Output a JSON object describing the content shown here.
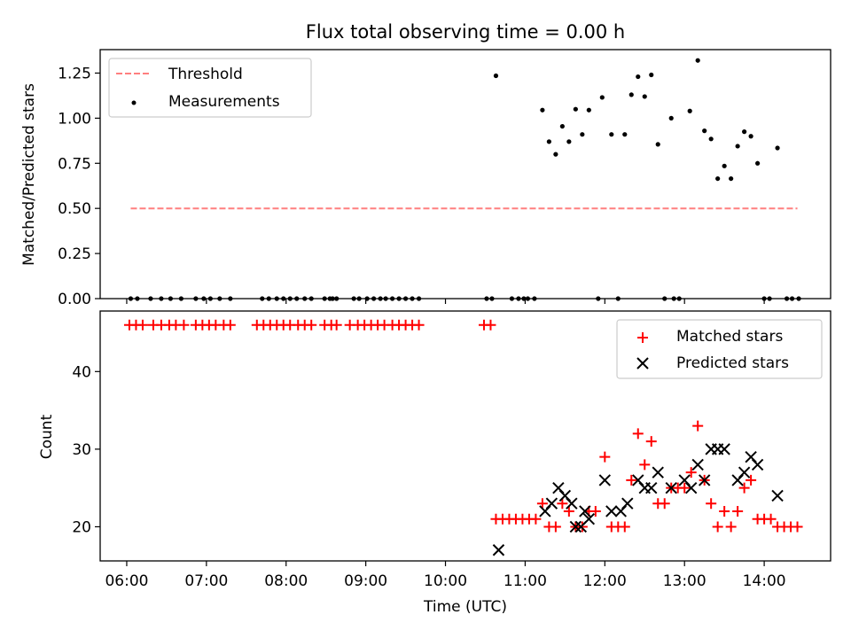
{
  "chart_data": [
    {
      "type": "scatter",
      "title": "Flux total observing time = 0.00 h",
      "xlabel": "",
      "ylabel": "Matched/Predicted stars",
      "xlim": [
        "05:40",
        "14:50"
      ],
      "ylim": [
        0,
        1.38
      ],
      "yticks": [
        0.0,
        0.25,
        0.5,
        0.75,
        1.0,
        1.25
      ],
      "ytick_labels": [
        "0.00",
        "0.25",
        "0.50",
        "0.75",
        "1.00",
        "1.25"
      ],
      "xticks": [
        "06:00",
        "07:00",
        "08:00",
        "09:00",
        "10:00",
        "11:00",
        "12:00",
        "13:00",
        "14:00"
      ],
      "grid": false,
      "legend": {
        "placement": "top-left",
        "entries": [
          "Threshold",
          "Measurements"
        ]
      },
      "threshold": {
        "name": "Threshold",
        "y": 0.5,
        "x_range": [
          "06:03",
          "14:25"
        ],
        "color": "#ff7f7f",
        "style": "dashed"
      },
      "series": [
        {
          "name": "Measurements",
          "marker": "dot",
          "color": "#000000",
          "points": [
            [
              "06:03",
              0
            ],
            [
              "06:08",
              0
            ],
            [
              "06:18",
              0
            ],
            [
              "06:26",
              0
            ],
            [
              "06:33",
              0
            ],
            [
              "06:41",
              0
            ],
            [
              "06:52",
              0
            ],
            [
              "06:58",
              0
            ],
            [
              "07:03",
              0
            ],
            [
              "07:10",
              0
            ],
            [
              "07:18",
              0
            ],
            [
              "07:42",
              0
            ],
            [
              "07:47",
              0
            ],
            [
              "07:53",
              0
            ],
            [
              "07:58",
              0
            ],
            [
              "08:03",
              0
            ],
            [
              "08:08",
              0
            ],
            [
              "08:14",
              0
            ],
            [
              "08:19",
              0
            ],
            [
              "08:29",
              0
            ],
            [
              "08:33",
              0
            ],
            [
              "08:35",
              0
            ],
            [
              "08:38",
              0
            ],
            [
              "08:51",
              0
            ],
            [
              "08:55",
              0
            ],
            [
              "09:01",
              0
            ],
            [
              "09:06",
              0
            ],
            [
              "09:11",
              0
            ],
            [
              "09:15",
              0
            ],
            [
              "09:20",
              0
            ],
            [
              "09:25",
              0
            ],
            [
              "09:30",
              0
            ],
            [
              "09:35",
              0
            ],
            [
              "09:40",
              0
            ],
            [
              "10:31",
              0
            ],
            [
              "10:35",
              0
            ],
            [
              "10:50",
              0
            ],
            [
              "10:55",
              0
            ],
            [
              "10:59",
              0
            ],
            [
              "11:02",
              0
            ],
            [
              "11:07",
              0
            ],
            [
              "11:55",
              0
            ],
            [
              "12:10",
              0
            ],
            [
              "12:45",
              0
            ],
            [
              "12:52",
              0
            ],
            [
              "12:56",
              0
            ],
            [
              "14:00",
              0
            ],
            [
              "14:04",
              0
            ],
            [
              "14:17",
              0
            ],
            [
              "14:21",
              0
            ],
            [
              "14:26",
              0
            ],
            [
              "10:38",
              1.235
            ],
            [
              "11:13",
              1.045
            ],
            [
              "11:18",
              0.87
            ],
            [
              "11:23",
              0.8
            ],
            [
              "11:28",
              0.955
            ],
            [
              "11:33",
              0.87
            ],
            [
              "11:38",
              1.05
            ],
            [
              "11:43",
              0.91
            ],
            [
              "11:48",
              1.045
            ],
            [
              "11:58",
              1.115
            ],
            [
              "12:05",
              0.91
            ],
            [
              "12:15",
              0.91
            ],
            [
              "12:20",
              1.13
            ],
            [
              "12:25",
              1.23
            ],
            [
              "12:30",
              1.12
            ],
            [
              "12:35",
              1.24
            ],
            [
              "12:40",
              0.855
            ],
            [
              "12:50",
              1.0
            ],
            [
              "13:04",
              1.04
            ],
            [
              "13:10",
              1.32
            ],
            [
              "13:15",
              0.93
            ],
            [
              "13:20",
              0.885
            ],
            [
              "13:25",
              0.665
            ],
            [
              "13:30",
              0.735
            ],
            [
              "13:35",
              0.665
            ],
            [
              "13:40",
              0.845
            ],
            [
              "13:45",
              0.925
            ],
            [
              "13:50",
              0.9
            ],
            [
              "13:55",
              0.75
            ],
            [
              "14:10",
              0.835
            ]
          ]
        }
      ]
    },
    {
      "type": "scatter",
      "title": "",
      "xlabel": "Time (UTC)",
      "ylabel": "Count",
      "xlim": [
        "05:40",
        "14:50"
      ],
      "ylim": [
        15.6,
        47.8
      ],
      "yticks": [
        20,
        30,
        40
      ],
      "ytick_labels": [
        "20",
        "30",
        "40"
      ],
      "xticks": [
        "06:00",
        "07:00",
        "08:00",
        "09:00",
        "10:00",
        "11:00",
        "12:00",
        "13:00",
        "14:00"
      ],
      "xtick_labels": [
        "06:00",
        "07:00",
        "08:00",
        "09:00",
        "10:00",
        "11:00",
        "12:00",
        "13:00",
        "14:00"
      ],
      "grid": false,
      "legend": {
        "placement": "top-right",
        "entries": [
          "Matched stars",
          "Predicted stars"
        ]
      },
      "series": [
        {
          "name": "Matched stars",
          "marker": "plus",
          "color": "#ff0000",
          "points": [
            [
              "06:02",
              46
            ],
            [
              "06:07",
              46
            ],
            [
              "06:12",
              46
            ],
            [
              "06:20",
              46
            ],
            [
              "06:26",
              46
            ],
            [
              "06:32",
              46
            ],
            [
              "06:37",
              46
            ],
            [
              "06:43",
              46
            ],
            [
              "06:52",
              46
            ],
            [
              "06:57",
              46
            ],
            [
              "07:02",
              46
            ],
            [
              "07:07",
              46
            ],
            [
              "07:13",
              46
            ],
            [
              "07:18",
              46
            ],
            [
              "07:38",
              46
            ],
            [
              "07:43",
              46
            ],
            [
              "07:48",
              46
            ],
            [
              "07:53",
              46
            ],
            [
              "07:58",
              46
            ],
            [
              "08:03",
              46
            ],
            [
              "08:09",
              46
            ],
            [
              "08:14",
              46
            ],
            [
              "08:19",
              46
            ],
            [
              "08:29",
              46
            ],
            [
              "08:34",
              46
            ],
            [
              "08:38",
              46
            ],
            [
              "08:48",
              46
            ],
            [
              "08:54",
              46
            ],
            [
              "08:59",
              46
            ],
            [
              "09:04",
              46
            ],
            [
              "09:09",
              46
            ],
            [
              "09:14",
              46
            ],
            [
              "09:20",
              46
            ],
            [
              "09:25",
              46
            ],
            [
              "09:30",
              46
            ],
            [
              "09:35",
              46
            ],
            [
              "09:40",
              46
            ],
            [
              "10:29",
              46
            ],
            [
              "10:34",
              46
            ],
            [
              "10:38",
              21
            ],
            [
              "10:43",
              21
            ],
            [
              "10:48",
              21
            ],
            [
              "10:53",
              21
            ],
            [
              "10:58",
              21
            ],
            [
              "11:03",
              21
            ],
            [
              "11:08",
              21
            ],
            [
              "11:13",
              23
            ],
            [
              "11:18",
              20
            ],
            [
              "11:23",
              20
            ],
            [
              "11:28",
              23
            ],
            [
              "11:33",
              22
            ],
            [
              "11:38",
              20
            ],
            [
              "11:43",
              20
            ],
            [
              "11:48",
              22
            ],
            [
              "11:53",
              22
            ],
            [
              "12:00",
              29
            ],
            [
              "12:05",
              20
            ],
            [
              "12:10",
              20
            ],
            [
              "12:15",
              20
            ],
            [
              "12:20",
              26
            ],
            [
              "12:25",
              32
            ],
            [
              "12:30",
              28
            ],
            [
              "12:35",
              31
            ],
            [
              "12:40",
              23
            ],
            [
              "12:45",
              23
            ],
            [
              "12:50",
              25
            ],
            [
              "12:55",
              25
            ],
            [
              "13:00",
              25
            ],
            [
              "13:05",
              27
            ],
            [
              "13:10",
              33
            ],
            [
              "13:15",
              26
            ],
            [
              "13:20",
              23
            ],
            [
              "13:25",
              20
            ],
            [
              "13:30",
              22
            ],
            [
              "13:35",
              20
            ],
            [
              "13:40",
              22
            ],
            [
              "13:45",
              25
            ],
            [
              "13:50",
              26
            ],
            [
              "13:55",
              21
            ],
            [
              "14:00",
              21
            ],
            [
              "14:05",
              21
            ],
            [
              "14:10",
              20
            ],
            [
              "14:15",
              20
            ],
            [
              "14:20",
              20
            ],
            [
              "14:25",
              20
            ]
          ]
        },
        {
          "name": "Predicted stars",
          "marker": "x",
          "color": "#000000",
          "points": [
            [
              "10:40",
              17
            ],
            [
              "11:15",
              22
            ],
            [
              "11:20",
              23
            ],
            [
              "11:25",
              25
            ],
            [
              "11:30",
              24
            ],
            [
              "11:35",
              23
            ],
            [
              "11:38",
              20
            ],
            [
              "11:42",
              20
            ],
            [
              "11:45",
              22
            ],
            [
              "11:48",
              21
            ],
            [
              "12:00",
              26
            ],
            [
              "12:05",
              22
            ],
            [
              "12:12",
              22
            ],
            [
              "12:17",
              23
            ],
            [
              "12:25",
              26
            ],
            [
              "12:30",
              25
            ],
            [
              "12:35",
              25
            ],
            [
              "12:40",
              27
            ],
            [
              "12:50",
              25
            ],
            [
              "13:00",
              26
            ],
            [
              "13:05",
              25
            ],
            [
              "13:10",
              28
            ],
            [
              "13:15",
              26
            ],
            [
              "13:20",
              30
            ],
            [
              "13:25",
              30
            ],
            [
              "13:30",
              30
            ],
            [
              "13:40",
              26
            ],
            [
              "13:45",
              27
            ],
            [
              "13:50",
              29
            ],
            [
              "13:55",
              28
            ],
            [
              "14:10",
              24
            ]
          ]
        }
      ]
    }
  ]
}
